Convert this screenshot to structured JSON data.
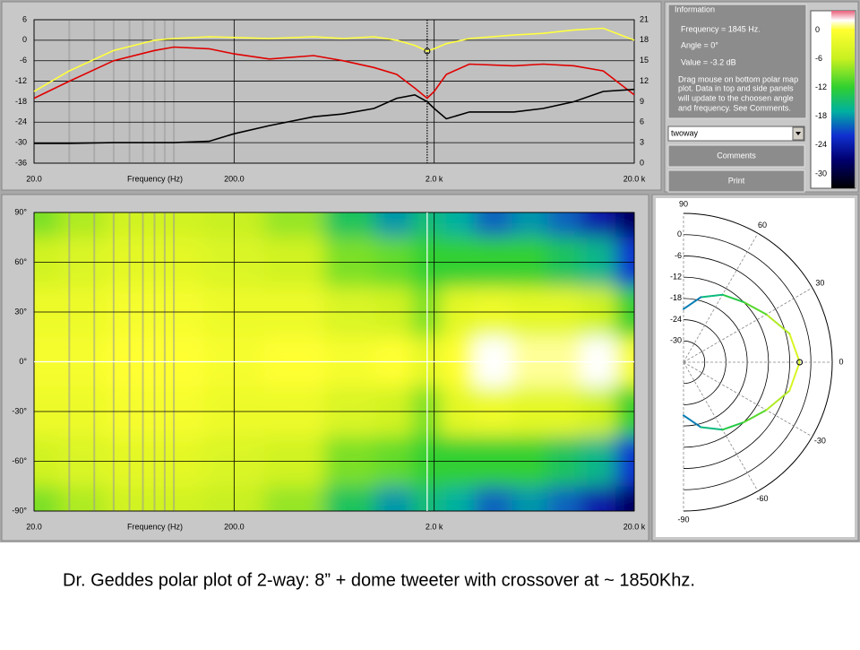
{
  "info": {
    "title": "Information",
    "frequency": "Frequency = 1845 Hz.",
    "angle": "Angle = 0°",
    "value": "Value = -3.2 dB",
    "help": [
      "Drag mouse on bottom polar map",
      "plot.  Data in top and side panels",
      "will update to the choosen angle",
      "and frequency.  See Comments."
    ],
    "dropdown": "twoway",
    "buttons": [
      "Comments",
      "Print"
    ]
  },
  "caption": "Dr. Geddes polar plot of 2-way:  8” + dome tweeter with crossover at ~ 1850Khz.",
  "chart_data": [
    {
      "type": "line",
      "x_label": "Frequency (Hz)",
      "log_x": true,
      "x": [
        20,
        30,
        50,
        80,
        100,
        150,
        200,
        300,
        500,
        700,
        1000,
        1300,
        1600,
        1845,
        2000,
        2300,
        3000,
        5000,
        7000,
        10000,
        14000,
        20000
      ],
      "xlim": [
        20,
        20000
      ],
      "xticks": [
        {
          "value": 20,
          "label": "20.0"
        },
        {
          "value": 200,
          "label": "200.0"
        },
        {
          "value": 2000,
          "label": "2.0 k"
        },
        {
          "value": 20000,
          "label": "20.0 k"
        }
      ],
      "minor_xticks": [
        30,
        40,
        50,
        60,
        70,
        80,
        90,
        100
      ],
      "ylim": [
        -36,
        6
      ],
      "yticks": [
        6,
        0,
        -6,
        -12,
        -18,
        -24,
        -30,
        -36
      ],
      "y2lim": [
        0,
        21
      ],
      "y2ticks": [
        21,
        18,
        15,
        12,
        9,
        6,
        3,
        0
      ],
      "grid": true,
      "cursor_x": 1845,
      "series": [
        {
          "color": "#ffff40",
          "values": [
            -15,
            -9,
            -3,
            0,
            0.5,
            1,
            0.8,
            0.5,
            1,
            0.5,
            1,
            0,
            -1.5,
            -3.2,
            -2.5,
            -1,
            0.5,
            1.5,
            2,
            3,
            3.5,
            0
          ]
        },
        {
          "color": "#e00000",
          "values": [
            -17,
            -12,
            -6,
            -3,
            -2,
            -2.5,
            -4,
            -5.5,
            -4.5,
            -6,
            -8,
            -10,
            -14,
            -17,
            -15,
            -10,
            -7,
            -7.5,
            -7,
            -7.5,
            -9,
            -16
          ]
        },
        {
          "color": "#000000",
          "axis": "y2",
          "values": [
            2.9,
            2.9,
            3,
            3,
            3,
            3.2,
            4.3,
            5.5,
            6.8,
            7.2,
            8,
            9.5,
            10,
            9,
            8,
            6.5,
            7.5,
            7.5,
            8,
            9,
            10.5,
            10.8
          ]
        }
      ]
    },
    {
      "type": "heatmap",
      "x_label": "Frequency (Hz)",
      "log_x": true,
      "x": [
        20,
        35,
        60,
        100,
        200,
        400,
        800,
        1300,
        1845,
        2500,
        4000,
        6000,
        9000,
        13000,
        20000
      ],
      "y": [
        90,
        60,
        30,
        0,
        -30,
        -60,
        -90
      ],
      "values": [
        [
          -9,
          -7,
          -5,
          -5,
          -6,
          -8,
          -14,
          -18,
          -15,
          -17,
          -20,
          -18,
          -20,
          -24,
          -28
        ],
        [
          -5,
          -4,
          -3,
          -3,
          -4,
          -5,
          -9,
          -10,
          -12,
          -12,
          -12,
          -12,
          -14,
          -16,
          -22
        ],
        [
          -2,
          -2,
          -1,
          -1,
          -2,
          -2,
          -4,
          -5,
          -9,
          -3,
          -2,
          -3,
          -3,
          -5,
          -12
        ],
        [
          -1,
          -1,
          0,
          0,
          -1,
          0,
          -1,
          0,
          -3,
          0,
          2,
          1,
          1,
          2,
          -1
        ],
        [
          -2,
          -2,
          -1,
          -1,
          -2,
          -2,
          -4,
          -5,
          -9,
          -3,
          -2,
          -3,
          -3,
          -5,
          -12
        ],
        [
          -5,
          -4,
          -3,
          -3,
          -4,
          -5,
          -9,
          -10,
          -12,
          -12,
          -12,
          -12,
          -14,
          -16,
          -22
        ],
        [
          -9,
          -7,
          -5,
          -5,
          -6,
          -8,
          -14,
          -18,
          -15,
          -17,
          -20,
          -18,
          -20,
          -24,
          -28
        ]
      ],
      "xlim": [
        20,
        20000
      ],
      "xticks": [
        {
          "value": 20,
          "label": "20.0"
        },
        {
          "value": 200,
          "label": "200.0"
        },
        {
          "value": 2000,
          "label": "2.0 k"
        },
        {
          "value": 20000,
          "label": "20.0 k"
        }
      ],
      "minor_xticks": [
        30,
        40,
        50,
        60,
        70,
        80,
        90,
        100
      ],
      "ylim": [
        -90,
        90
      ],
      "yticks": [
        {
          "value": 90,
          "label": "90°"
        },
        {
          "value": 60,
          "label": "60°"
        },
        {
          "value": 30,
          "label": "30°"
        },
        {
          "value": 0,
          "label": "0°"
        },
        {
          "value": -30,
          "label": "-30°"
        },
        {
          "value": -60,
          "label": "-60°"
        },
        {
          "value": -90,
          "label": "-90°"
        }
      ],
      "grid": true,
      "cursor": {
        "x": 1845,
        "y": 0
      },
      "clim": [
        -33,
        4
      ],
      "cticks": [
        0,
        -6,
        -12,
        -18,
        -24,
        -30
      ],
      "colorscale": [
        {
          "value": 4,
          "color": "#e8607a"
        },
        {
          "value": 2,
          "color": "#ffffff"
        },
        {
          "value": 0,
          "color": "#ffff30"
        },
        {
          "value": -6,
          "color": "#c8f020"
        },
        {
          "value": -12,
          "color": "#30d030"
        },
        {
          "value": -17,
          "color": "#00b0a0"
        },
        {
          "value": -22,
          "color": "#1030d0"
        },
        {
          "value": -27,
          "color": "#000070"
        },
        {
          "value": -33,
          "color": "#000000"
        }
      ]
    },
    {
      "type": "polar",
      "theta": [
        -90,
        -75,
        -60,
        -45,
        -30,
        -15,
        0,
        15,
        30,
        45,
        60,
        75,
        90
      ],
      "values": [
        -21,
        -17,
        -14,
        -12,
        -9,
        -5,
        -3.2,
        -5,
        -9,
        -12,
        -14,
        -17,
        -21
      ],
      "rlim": [
        -36,
        6
      ],
      "rticks": [
        0,
        -6,
        -12,
        -18,
        -24,
        -30
      ],
      "thetaticks": [
        90,
        60,
        30,
        0,
        -30,
        -60,
        -90
      ],
      "cursor_theta": 0
    }
  ]
}
